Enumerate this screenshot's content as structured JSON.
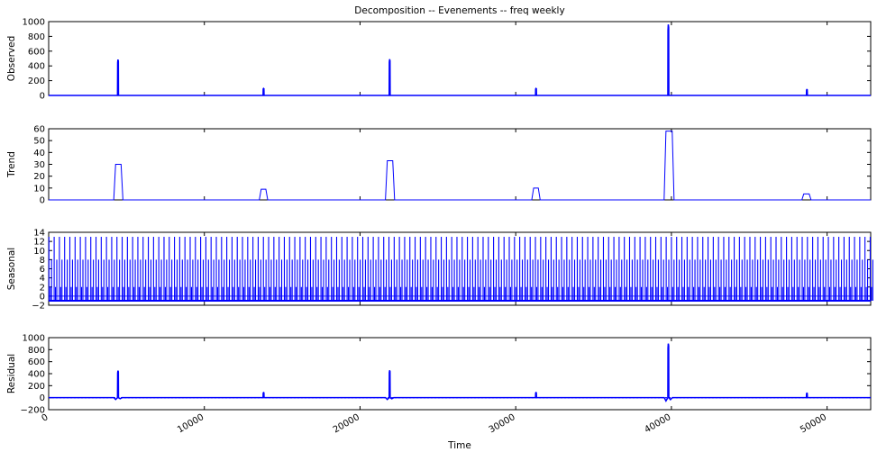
{
  "figure": {
    "title": "Decomposition -- Evenements -- freq weekly",
    "xlabel": "Time"
  },
  "colors": {
    "series": "#0000ff",
    "axes": "#000000",
    "background": "#ffffff"
  },
  "chart_data": {
    "type": "line",
    "title": "Decomposition -- Evenements -- freq weekly",
    "xlabel": "Time",
    "xlim": [
      0,
      52800
    ],
    "xticks": [
      0,
      10000,
      20000,
      30000,
      40000,
      50000
    ],
    "shared_x": true,
    "grid": false,
    "panels": [
      {
        "name": "observed",
        "ylabel": "Observed",
        "ylim": [
          0,
          1000
        ],
        "yticks": [
          0,
          200,
          400,
          600,
          800,
          1000
        ],
        "baseline": 0,
        "spikes": [
          {
            "x": 4450,
            "value": 485
          },
          {
            "x": 13800,
            "value": 95
          },
          {
            "x": 21900,
            "value": 490
          },
          {
            "x": 31300,
            "value": 95
          },
          {
            "x": 39800,
            "value": 960
          },
          {
            "x": 48700,
            "value": 80
          }
        ]
      },
      {
        "name": "trend",
        "ylabel": "Trend",
        "ylim": [
          0,
          60
        ],
        "yticks": [
          0,
          10,
          20,
          30,
          40,
          50,
          60
        ],
        "baseline": 0,
        "plateaus": [
          {
            "x_start": 4300,
            "x_end": 4650,
            "value": 30
          },
          {
            "x_start": 13650,
            "x_end": 13950,
            "value": 9
          },
          {
            "x_start": 21750,
            "x_end": 22100,
            "value": 33
          },
          {
            "x_start": 31150,
            "x_end": 31450,
            "value": 10
          },
          {
            "x_start": 39650,
            "x_end": 40050,
            "value": 58
          },
          {
            "x_start": 48500,
            "x_end": 48850,
            "value": 5
          }
        ]
      },
      {
        "name": "seasonal",
        "ylabel": "Seasonal",
        "ylim": [
          -2,
          14
        ],
        "yticks": [
          -2,
          0,
          2,
          4,
          6,
          8,
          10,
          12,
          14
        ],
        "period": 336,
        "pattern_max": 13,
        "pattern_min": -1
      },
      {
        "name": "residual",
        "ylabel": "Residual",
        "ylim": [
          -200,
          1000
        ],
        "yticks": [
          -200,
          0,
          200,
          400,
          600,
          800,
          1000
        ],
        "baseline": 0,
        "spikes": [
          {
            "x": 4450,
            "value": 450
          },
          {
            "x": 13800,
            "value": 85
          },
          {
            "x": 21900,
            "value": 455
          },
          {
            "x": 31300,
            "value": 85
          },
          {
            "x": 39800,
            "value": 900
          },
          {
            "x": 48700,
            "value": 75
          }
        ],
        "dips": [
          {
            "x": 4450,
            "value": -30
          },
          {
            "x": 21900,
            "value": -30
          },
          {
            "x": 39800,
            "value": -55
          }
        ]
      }
    ]
  }
}
